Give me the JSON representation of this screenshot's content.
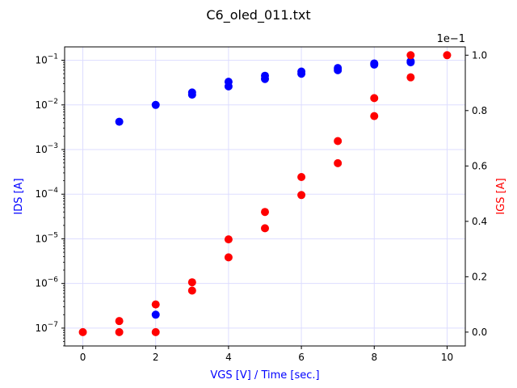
{
  "chart_data": {
    "type": "scatter",
    "title": "C6_oled_011.txt",
    "xlabel": "VGS [V] / Time [sec.]",
    "ylabel_left": "IDS [A]",
    "ylabel_right": "IGS [A]",
    "right_axis_offset": "1e−1",
    "xlim": [
      -0.5,
      10.5
    ],
    "xticks": [
      0,
      2,
      4,
      6,
      8,
      10
    ],
    "left_yscale": "log",
    "left_ylim_log10": [
      -7.4,
      -0.7
    ],
    "left_yticks_exp": [
      -7,
      -6,
      -5,
      -4,
      -3,
      -2,
      -1
    ],
    "right_ylim": [
      -0.05,
      1.03
    ],
    "right_yticks": [
      0.0,
      0.2,
      0.4,
      0.6,
      0.8,
      1.0
    ],
    "grid": true,
    "colors": {
      "ids": "#0000ff",
      "igs": "#ff0000",
      "grid": "#ddddff"
    },
    "series": [
      {
        "axis": "left",
        "color": "#0000ff",
        "x": [
          1,
          2,
          2,
          3,
          3,
          4,
          4,
          5,
          5,
          6,
          6,
          7,
          7,
          8,
          8,
          9,
          9
        ],
        "y": [
          0.0042,
          2e-07,
          0.01,
          0.017,
          0.019,
          0.026,
          0.033,
          0.038,
          0.045,
          0.05,
          0.056,
          0.06,
          0.067,
          0.08,
          0.085,
          0.09,
          0.095
        ]
      },
      {
        "axis": "right",
        "color": "#ff0000",
        "x": [
          0,
          1,
          1,
          2,
          2,
          3,
          3,
          4,
          4,
          5,
          6,
          6,
          7,
          7,
          8,
          8,
          9,
          9,
          10
        ],
        "y": [
          0.0,
          0.0,
          0.04,
          0.0,
          0.1,
          0.15,
          0.18,
          0.27,
          0.335,
          0.375,
          0.495,
          0.56,
          0.61,
          0.69,
          0.78,
          0.845,
          0.92,
          1.0,
          1.0
        ]
      },
      {
        "axis": "left",
        "color": "#ff0000",
        "x": [
          5
        ],
        "y": [
          4e-05
        ]
      }
    ]
  }
}
